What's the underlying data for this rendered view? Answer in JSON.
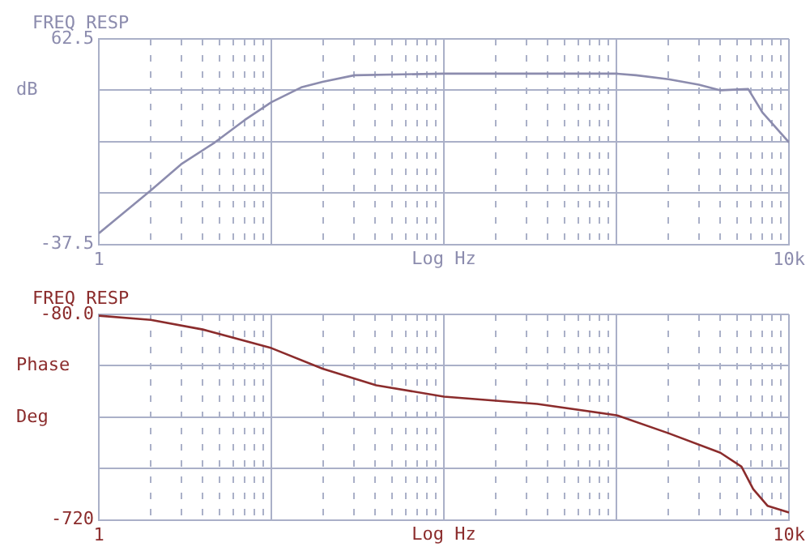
{
  "chart_data": [
    {
      "type": "line",
      "title": "FREQ RESP",
      "xlabel": "Log Hz",
      "ylabel": "dB",
      "log": "x",
      "grid": true,
      "marker": "none",
      "line_style": "solid",
      "legend": false,
      "x": [
        1,
        1.4,
        2,
        3,
        4.7,
        7,
        10,
        14.9,
        19.8,
        30.3,
        100,
        1000,
        1300,
        2000,
        3000,
        4000,
        5800,
        7000,
        10000
      ],
      "series": [
        {
          "color": "#8c8cae",
          "values": [
            -32.1,
            -22,
            -11.2,
            1.5,
            12.1,
            23,
            31.7,
            38.9,
            41.6,
            44.8,
            45.6,
            45.6,
            44.8,
            42.9,
            40.2,
            37.5,
            38.1,
            26.8,
            12.1
          ]
        }
      ],
      "xlim": [
        1,
        10000
      ],
      "ylim": [
        -37.5,
        62.5
      ],
      "xticks": [
        {
          "value": 1,
          "label": "1"
        },
        {
          "value": 2,
          "label": null
        },
        {
          "value": 3,
          "label": null
        },
        {
          "value": 4,
          "label": null
        },
        {
          "value": 5,
          "label": null
        },
        {
          "value": 6,
          "label": null
        },
        {
          "value": 7,
          "label": null
        },
        {
          "value": 8,
          "label": null
        },
        {
          "value": 9,
          "label": null
        },
        {
          "value": 10,
          "label": null
        },
        {
          "value": 20,
          "label": null
        },
        {
          "value": 30,
          "label": null
        },
        {
          "value": 40,
          "label": null
        },
        {
          "value": 50,
          "label": null
        },
        {
          "value": 60,
          "label": null
        },
        {
          "value": 70,
          "label": null
        },
        {
          "value": 80,
          "label": null
        },
        {
          "value": 90,
          "label": null
        },
        {
          "value": 100,
          "label": null
        },
        {
          "value": 200,
          "label": null
        },
        {
          "value": 300,
          "label": null
        },
        {
          "value": 400,
          "label": null
        },
        {
          "value": 500,
          "label": null
        },
        {
          "value": 600,
          "label": null
        },
        {
          "value": 700,
          "label": null
        },
        {
          "value": 800,
          "label": null
        },
        {
          "value": 900,
          "label": null
        },
        {
          "value": 1000,
          "label": null
        },
        {
          "value": 2000,
          "label": null
        },
        {
          "value": 3000,
          "label": null
        },
        {
          "value": 4000,
          "label": null
        },
        {
          "value": 5000,
          "label": null
        },
        {
          "value": 6000,
          "label": null
        },
        {
          "value": 7000,
          "label": null
        },
        {
          "value": 8000,
          "label": null
        },
        {
          "value": 9000,
          "label": null
        },
        {
          "value": 10000,
          "label": "10k"
        }
      ],
      "yticks": [
        62.5,
        {
          "value": 37.5,
          "label": null
        },
        {
          "value": 12.5,
          "label": null
        },
        {
          "value": -12.5,
          "label": null
        },
        -37.5
      ]
    },
    {
      "type": "line",
      "title": "FREQ RESP",
      "xlabel": "Log Hz",
      "ylabel": "Phase Deg",
      "log": "x",
      "grid": true,
      "marker": "none",
      "line_style": "solid",
      "legend": false,
      "x": [
        1,
        2,
        4,
        10,
        19.8,
        40.5,
        100,
        347,
        1000,
        2000,
        4000,
        5300,
        6200,
        7500,
        10000
      ],
      "series": [
        {
          "color": "#8b2c2c",
          "values": [
            -84,
            -97,
            -127,
            -185,
            -249,
            -301,
            -336,
            -359,
            -394,
            -450,
            -511,
            -554,
            -624,
            -676,
            -697
          ]
        }
      ],
      "xlim": [
        1,
        10000
      ],
      "ylim": [
        -720,
        -80
      ],
      "xticks": [
        {
          "value": 1,
          "label": "1"
        },
        {
          "value": 2,
          "label": null
        },
        {
          "value": 3,
          "label": null
        },
        {
          "value": 4,
          "label": null
        },
        {
          "value": 5,
          "label": null
        },
        {
          "value": 6,
          "label": null
        },
        {
          "value": 7,
          "label": null
        },
        {
          "value": 8,
          "label": null
        },
        {
          "value": 9,
          "label": null
        },
        {
          "value": 10,
          "label": null
        },
        {
          "value": 20,
          "label": null
        },
        {
          "value": 30,
          "label": null
        },
        {
          "value": 40,
          "label": null
        },
        {
          "value": 50,
          "label": null
        },
        {
          "value": 60,
          "label": null
        },
        {
          "value": 70,
          "label": null
        },
        {
          "value": 80,
          "label": null
        },
        {
          "value": 90,
          "label": null
        },
        {
          "value": 100,
          "label": null
        },
        {
          "value": 200,
          "label": null
        },
        {
          "value": 300,
          "label": null
        },
        {
          "value": 400,
          "label": null
        },
        {
          "value": 500,
          "label": null
        },
        {
          "value": 600,
          "label": null
        },
        {
          "value": 700,
          "label": null
        },
        {
          "value": 800,
          "label": null
        },
        {
          "value": 900,
          "label": null
        },
        {
          "value": 1000,
          "label": null
        },
        {
          "value": 2000,
          "label": null
        },
        {
          "value": 3000,
          "label": null
        },
        {
          "value": 4000,
          "label": null
        },
        {
          "value": 5000,
          "label": null
        },
        {
          "value": 6000,
          "label": null
        },
        {
          "value": 7000,
          "label": null
        },
        {
          "value": 8000,
          "label": null
        },
        {
          "value": 9000,
          "label": null
        },
        {
          "value": 10000,
          "label": "10k"
        }
      ],
      "yticks": [
        {
          "value": -80,
          "label": "-80.0"
        },
        {
          "value": -240,
          "label": null
        },
        {
          "value": -400,
          "label": null
        },
        {
          "value": -560,
          "label": null
        },
        {
          "value": -720,
          "label": "-720"
        }
      ]
    }
  ]
}
